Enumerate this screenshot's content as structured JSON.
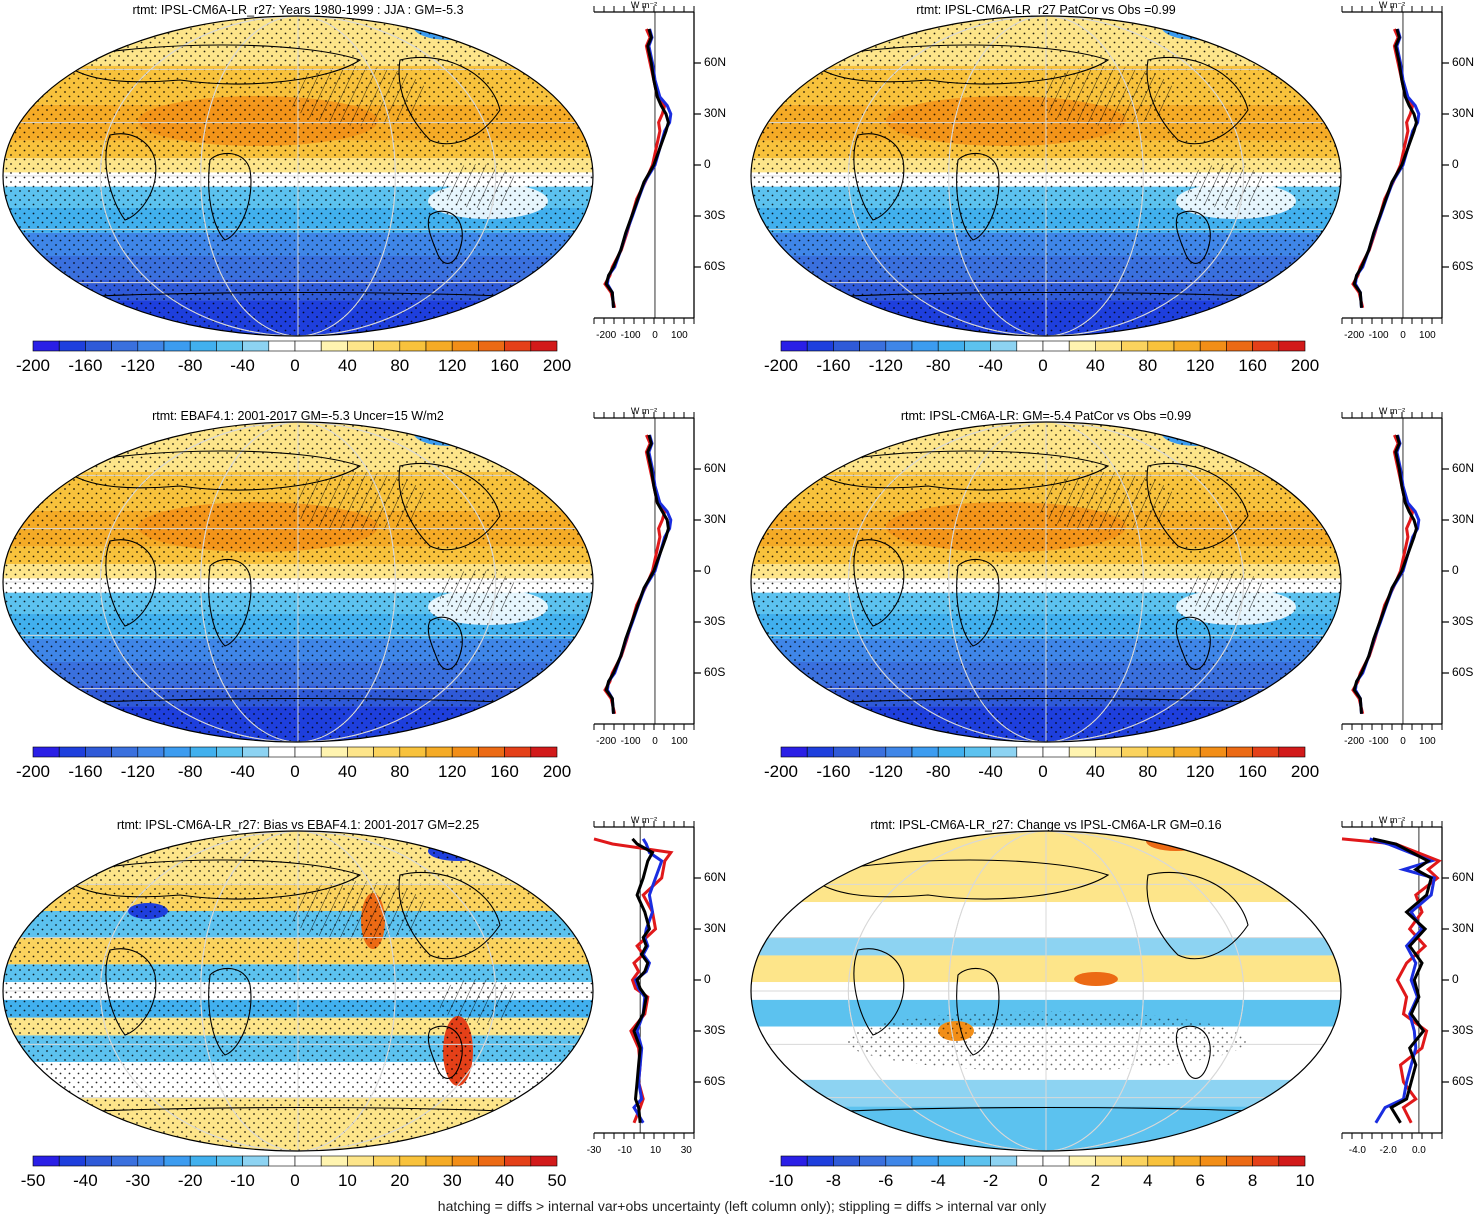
{
  "footer": "hatching = diffs > internal var+obs uncertainty (left column only); stippling = diffs > internal var only",
  "zonal_unit": "W m⁻²",
  "colors": {
    "cold": [
      "#2a1fe6",
      "#1e3fdd",
      "#2f5ad8",
      "#3a70de",
      "#3f86e8",
      "#3c9cf0",
      "#41b0ee",
      "#5cc2ef",
      "#8dd3f2"
    ],
    "neutral": "#ffffff",
    "warm": [
      "#fff4b0",
      "#fde58a",
      "#fbd35e",
      "#f8c23c",
      "#f5ab26",
      "#f28e17",
      "#ec6a14",
      "#e44018",
      "#d21a1a"
    ],
    "zonal_model": "#000000",
    "zonal_obs": "#1a2de0",
    "zonal_other": "#e0181a"
  },
  "chart_data": [
    {
      "type": "map",
      "title": "rtmt: IPSL-CM6A-LR_r27: Years 1980-1999 : JJA : GM=-5.3",
      "pattern": "mean",
      "colorbar_ticks": [
        "-200",
        "-160",
        "-120",
        "-80",
        "-40",
        "0",
        "40",
        "80",
        "120",
        "160",
        "200"
      ],
      "zonal": {
        "x_ticks": [
          "-200",
          "-100",
          "0",
          "100"
        ],
        "x_values": [
          -200,
          -100,
          0,
          100
        ],
        "xlim": [
          -250,
          160
        ],
        "lat_labels": [
          "60N",
          "30N",
          "0",
          "30S",
          "60S"
        ],
        "lat_values": [
          60,
          30,
          0,
          -30,
          -60
        ],
        "lat": [
          -84,
          -75,
          -70,
          -65,
          -60,
          -50,
          -40,
          -30,
          -20,
          -10,
          0,
          10,
          20,
          25,
          30,
          35,
          40,
          50,
          60,
          70,
          75,
          80
        ],
        "model": [
          -170,
          -175,
          -200,
          -190,
          -170,
          -140,
          -120,
          -95,
          -70,
          -45,
          -5,
          20,
          45,
          55,
          45,
          25,
          10,
          -5,
          -15,
          -30,
          -15,
          -25
        ],
        "obs": [
          -170,
          -175,
          -195,
          -190,
          -165,
          -140,
          -118,
          -92,
          -68,
          -42,
          0,
          20,
          40,
          60,
          65,
          50,
          20,
          0,
          -10,
          -25,
          -12,
          -22
        ],
        "other": [
          -165,
          -180,
          -205,
          -185,
          -175,
          -138,
          -115,
          -95,
          -75,
          -40,
          -10,
          5,
          20,
          15,
          30,
          40,
          10,
          -5,
          -20,
          -35,
          -20,
          -35
        ]
      }
    },
    {
      "type": "map",
      "title": "rtmt: IPSL-CM6A-LR_r27 PatCor vs Obs =0.99",
      "pattern": "mean",
      "colorbar_ticks": [
        "-200",
        "-160",
        "-120",
        "-80",
        "-40",
        "0",
        "40",
        "80",
        "120",
        "160",
        "200"
      ],
      "zonal": {
        "x_ticks": [
          "-200",
          "-100",
          "0",
          "100"
        ],
        "x_values": [
          -200,
          -100,
          0,
          100
        ],
        "xlim": [
          -250,
          160
        ],
        "lat_labels": [
          "60N",
          "30N",
          "0",
          "30S",
          "60S"
        ],
        "lat_values": [
          60,
          30,
          0,
          -30,
          -60
        ],
        "lat": [
          -84,
          -75,
          -70,
          -65,
          -60,
          -50,
          -40,
          -30,
          -20,
          -10,
          0,
          10,
          20,
          25,
          30,
          35,
          40,
          50,
          60,
          70,
          75,
          80
        ],
        "model": [
          -170,
          -175,
          -200,
          -190,
          -170,
          -140,
          -120,
          -95,
          -70,
          -45,
          -5,
          20,
          45,
          55,
          45,
          25,
          10,
          -5,
          -15,
          -30,
          -15,
          -25
        ],
        "obs": [
          -170,
          -175,
          -195,
          -190,
          -165,
          -140,
          -118,
          -92,
          -68,
          -42,
          0,
          20,
          40,
          60,
          65,
          50,
          20,
          0,
          -10,
          -25,
          -12,
          -22
        ],
        "other": [
          -165,
          -180,
          -205,
          -185,
          -175,
          -138,
          -115,
          -95,
          -75,
          -40,
          -10,
          5,
          20,
          15,
          30,
          40,
          10,
          -5,
          -20,
          -35,
          -20,
          -35
        ]
      }
    },
    {
      "type": "map",
      "title": "rtmt: EBAF4.1: 2001-2017 GM=-5.3 Uncer=15 W/m2",
      "pattern": "mean",
      "colorbar_ticks": [
        "-200",
        "-160",
        "-120",
        "-80",
        "-40",
        "0",
        "40",
        "80",
        "120",
        "160",
        "200"
      ],
      "zonal": {
        "x_ticks": [
          "-200",
          "-100",
          "0",
          "100"
        ],
        "x_values": [
          -200,
          -100,
          0,
          100
        ],
        "xlim": [
          -250,
          160
        ],
        "lat_labels": [
          "60N",
          "30N",
          "0",
          "30S",
          "60S"
        ],
        "lat_values": [
          60,
          30,
          0,
          -30,
          -60
        ],
        "lat": [
          -84,
          -75,
          -70,
          -65,
          -60,
          -50,
          -40,
          -30,
          -20,
          -10,
          0,
          10,
          20,
          25,
          30,
          35,
          40,
          50,
          60,
          70,
          75,
          80
        ],
        "model": [
          -170,
          -175,
          -200,
          -190,
          -170,
          -140,
          -120,
          -95,
          -70,
          -45,
          -5,
          20,
          45,
          55,
          50,
          30,
          10,
          -5,
          -15,
          -30,
          -15,
          -25
        ],
        "obs": [
          -170,
          -175,
          -195,
          -190,
          -165,
          -140,
          -118,
          -92,
          -68,
          -42,
          0,
          20,
          40,
          60,
          65,
          50,
          20,
          0,
          -10,
          -25,
          -12,
          -22
        ],
        "other": [
          -165,
          -180,
          -205,
          -185,
          -175,
          -138,
          -115,
          -95,
          -75,
          -40,
          -10,
          5,
          20,
          15,
          30,
          40,
          10,
          -5,
          -20,
          -35,
          -20,
          -35
        ]
      }
    },
    {
      "type": "map",
      "title": "rtmt: IPSL-CM6A-LR: GM=-5.4 PatCor vs Obs =0.99",
      "pattern": "mean",
      "colorbar_ticks": [
        "-200",
        "-160",
        "-120",
        "-80",
        "-40",
        "0",
        "40",
        "80",
        "120",
        "160",
        "200"
      ],
      "zonal": {
        "x_ticks": [
          "-200",
          "-100",
          "0",
          "100"
        ],
        "x_values": [
          -200,
          -100,
          0,
          100
        ],
        "xlim": [
          -250,
          160
        ],
        "lat_labels": [
          "60N",
          "30N",
          "0",
          "30S",
          "60S"
        ],
        "lat_values": [
          60,
          30,
          0,
          -30,
          -60
        ],
        "lat": [
          -84,
          -75,
          -70,
          -65,
          -60,
          -50,
          -40,
          -30,
          -20,
          -10,
          0,
          10,
          20,
          25,
          30,
          35,
          40,
          50,
          60,
          70,
          75,
          80
        ],
        "model": [
          -170,
          -175,
          -200,
          -190,
          -170,
          -140,
          -120,
          -95,
          -70,
          -45,
          -5,
          20,
          45,
          55,
          45,
          25,
          10,
          -5,
          -15,
          -30,
          -15,
          -25
        ],
        "obs": [
          -170,
          -175,
          -195,
          -190,
          -165,
          -140,
          -118,
          -92,
          -68,
          -42,
          0,
          20,
          40,
          60,
          65,
          50,
          20,
          0,
          -10,
          -25,
          -12,
          -22
        ],
        "other": [
          -165,
          -180,
          -205,
          -185,
          -175,
          -138,
          -115,
          -95,
          -75,
          -40,
          -10,
          5,
          20,
          15,
          30,
          40,
          10,
          -5,
          -20,
          -35,
          -20,
          -35
        ]
      }
    },
    {
      "type": "map",
      "title": "rtmt: IPSL-CM6A-LR_r27: Bias vs EBAF4.1: 2001-2017 GM=2.25",
      "pattern": "bias",
      "colorbar_ticks": [
        "-50",
        "-40",
        "-30",
        "-20",
        "-10",
        "0",
        "10",
        "20",
        "30",
        "40",
        "50"
      ],
      "zonal": {
        "x_ticks": [
          "-30",
          "-10",
          "10",
          "30"
        ],
        "x_values": [
          -30,
          -10,
          10,
          30
        ],
        "xlim": [
          -30,
          35
        ],
        "lat_labels": [
          "60N",
          "30N",
          "0",
          "30S",
          "60S"
        ],
        "lat_values": [
          60,
          30,
          0,
          -30,
          -60
        ],
        "lat": [
          -84,
          -75,
          -70,
          -60,
          -50,
          -40,
          -30,
          -20,
          -10,
          -5,
          0,
          5,
          10,
          15,
          20,
          25,
          30,
          40,
          50,
          60,
          70,
          75,
          80,
          83
        ],
        "model": [
          0,
          -1,
          -3,
          -2,
          -1,
          0,
          -4,
          2,
          4,
          0,
          -2,
          3,
          5,
          1,
          4,
          2,
          6,
          3,
          -2,
          2,
          5,
          8,
          -2,
          -5
        ],
        "obs": [
          2,
          -4,
          1,
          -1,
          0,
          1,
          -2,
          2,
          3,
          -1,
          -3,
          4,
          6,
          2,
          5,
          3,
          4,
          8,
          6,
          10,
          14,
          6,
          4,
          2
        ],
        "other": [
          -4,
          0,
          2,
          -1,
          0,
          -1,
          -6,
          3,
          5,
          -3,
          -5,
          -1,
          -4,
          2,
          -2,
          4,
          10,
          8,
          2,
          14,
          16,
          20,
          -18,
          -30
        ]
      }
    },
    {
      "type": "map",
      "title": "rtmt: IPSL-CM6A-LR_r27: Change vs IPSL-CM6A-LR GM=0.16",
      "pattern": "change",
      "colorbar_ticks": [
        "-10",
        "-8",
        "-6",
        "-4",
        "-2",
        "0",
        "2",
        "4",
        "6",
        "8",
        "10"
      ],
      "zonal": {
        "x_ticks": [
          "-4.0",
          "-2.0",
          "0.0"
        ],
        "x_values": [
          -4,
          -2,
          0
        ],
        "xlim": [
          -5,
          1.5
        ],
        "lat_labels": [
          "60N",
          "30N",
          "0",
          "30S",
          "60S"
        ],
        "lat_values": [
          60,
          30,
          0,
          -30,
          -60
        ],
        "lat": [
          -84,
          -75,
          -70,
          -60,
          -50,
          -40,
          -30,
          -20,
          -10,
          0,
          10,
          20,
          30,
          40,
          50,
          60,
          65,
          70,
          80,
          83
        ],
        "model": [
          -1.2,
          -1.8,
          -0.8,
          -0.5,
          -0.2,
          -0.6,
          0.3,
          -0.5,
          0,
          -0.3,
          0.2,
          -0.6,
          0.4,
          -0.8,
          0.5,
          0.8,
          -0.2,
          0.6,
          -1.5,
          -3
        ],
        "obs": [
          -2.8,
          -2.2,
          -1.0,
          -0.8,
          -0.5,
          -0.2,
          -0.3,
          -0.6,
          -0.1,
          -0.5,
          -0.2,
          -0.8,
          0.2,
          -0.5,
          0.8,
          1.0,
          -1.0,
          0.8,
          -2.0,
          -3.2
        ],
        "other": [
          -0.5,
          -1.0,
          -0.2,
          -1.0,
          -1.2,
          0.2,
          0.5,
          -1.0,
          -0.8,
          -1.4,
          -0.8,
          0.4,
          -0.6,
          0.2,
          -0.2,
          1.2,
          0.6,
          1.3,
          -1.5,
          -5
        ]
      }
    }
  ]
}
